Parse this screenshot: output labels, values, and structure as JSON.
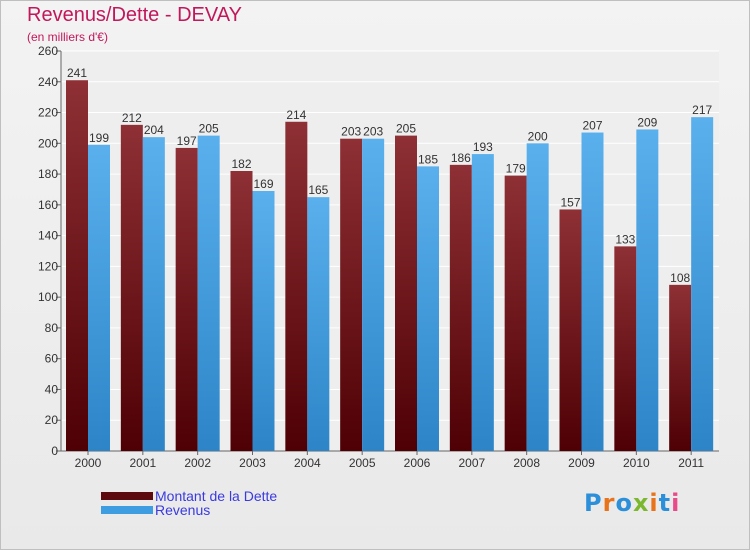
{
  "header": {
    "title": "Revenus/Dette - DEVAY",
    "subtitle": "(en milliers d'€)"
  },
  "chart_data": {
    "type": "bar",
    "categories": [
      "2000",
      "2001",
      "2002",
      "2003",
      "2004",
      "2005",
      "2006",
      "2007",
      "2008",
      "2009",
      "2010",
      "2011"
    ],
    "series": [
      {
        "name": "Montant de la Dette",
        "color": "#7a1a1f",
        "values": [
          241,
          212,
          197,
          182,
          214,
          203,
          205,
          186,
          179,
          157,
          133,
          108
        ]
      },
      {
        "name": "Revenus",
        "color": "#3d9de0",
        "values": [
          199,
          204,
          205,
          169,
          165,
          203,
          185,
          193,
          200,
          207,
          209,
          217
        ]
      }
    ],
    "ylim": [
      0,
      260
    ],
    "yticks": [
      0,
      20,
      40,
      60,
      80,
      100,
      120,
      140,
      160,
      180,
      200,
      220,
      240,
      260
    ],
    "grid": true,
    "legend_position": "bottom-left"
  },
  "logo": {
    "text": "Proxiti"
  }
}
